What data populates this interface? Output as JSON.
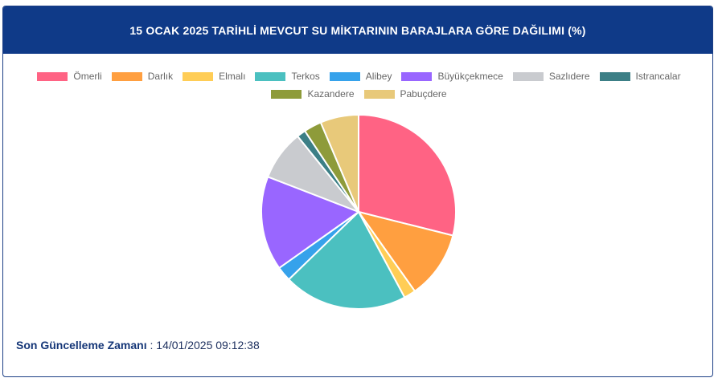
{
  "title": "15 OCAK 2025 TARİHLİ MEVCUT SU MİKTARININ BARAJLARA GÖRE DAĞILIMI (%)",
  "footer": {
    "label": "Son Güncelleme Zamanı",
    "separator": " : ",
    "value": "14/01/2025 09:12:38"
  },
  "chart_data": {
    "type": "pie",
    "legend_position": "top",
    "categories": [
      "Ömerli",
      "Darlık",
      "Elmalı",
      "Terkos",
      "Alibey",
      "Büyükçekmece",
      "Sazlıdere",
      "Istrancalar",
      "Kazandere",
      "Pabuçdere"
    ],
    "values": [
      29.5,
      11.5,
      2.0,
      21.0,
      2.5,
      16.0,
      8.5,
      1.5,
      3.0,
      6.5
    ],
    "colors": [
      "#ff6384",
      "#ff9f40",
      "#ffcd56",
      "#4bc0c0",
      "#36a2eb",
      "#9966ff",
      "#c9cbcf",
      "#3c7f86",
      "#8e9b3a",
      "#e8c97a"
    ]
  }
}
